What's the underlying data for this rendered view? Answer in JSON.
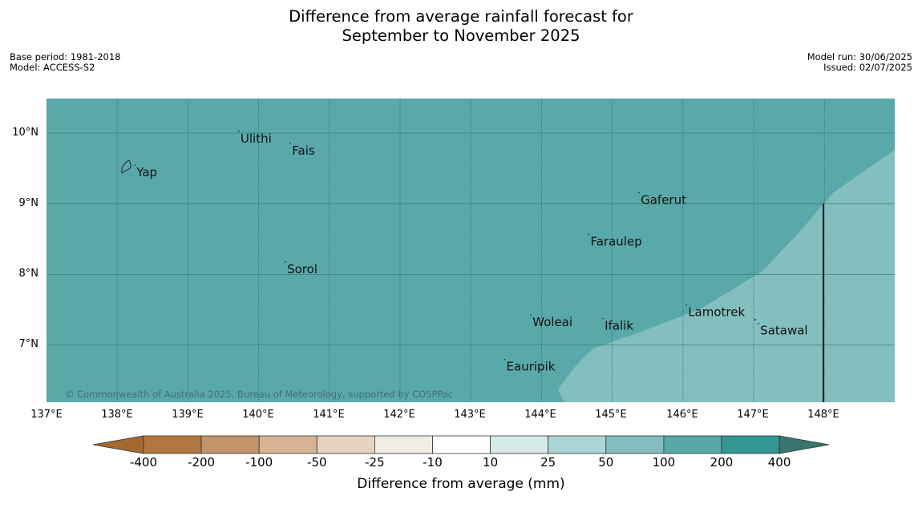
{
  "title_line1": "Difference from average rainfall forecast for",
  "title_line2": "September to November 2025",
  "base_period": "Base period: 1981-2018",
  "model": "Model: ACCESS-S2",
  "model_run": "Model run: 30/06/2025",
  "issued": "Issued: 02/07/2025",
  "copyright": "© Commonwealth of Australia 2025, Bureau of Meteorology, supported by COSPPac",
  "lon_labels": [
    "137°E",
    "138°E",
    "139°E",
    "140°E",
    "141°E",
    "142°E",
    "143°E",
    "144°E",
    "145°E",
    "146°E",
    "147°E",
    "148°E"
  ],
  "lat_labels": [
    "10°N",
    "9°N",
    "8°N",
    "7°N"
  ],
  "places": [
    {
      "name": "Yap",
      "lon": 138.25,
      "lat": 9.5
    },
    {
      "name": "Ulithi",
      "lon": 139.72,
      "lat": 9.98
    },
    {
      "name": "Fais",
      "lon": 140.45,
      "lat": 9.81
    },
    {
      "name": "Gaferut",
      "lon": 145.38,
      "lat": 9.11
    },
    {
      "name": "Faraulep",
      "lon": 144.67,
      "lat": 8.52
    },
    {
      "name": "Sorol",
      "lon": 140.38,
      "lat": 8.13
    },
    {
      "name": "Lamotrek",
      "lon": 146.05,
      "lat": 7.52
    },
    {
      "name": "Woleai",
      "lon": 143.85,
      "lat": 7.38
    },
    {
      "name": "Ifalik",
      "lon": 144.87,
      "lat": 7.33
    },
    {
      "name": "Satawal",
      "lon": 147.07,
      "lat": 7.26
    },
    {
      "name": "Eauripik",
      "lon": 143.48,
      "lat": 6.75
    }
  ],
  "map_extent": {
    "lon": [
      137.0,
      149.0
    ],
    "lat": [
      6.2,
      10.5
    ]
  },
  "regions": [
    {
      "category": "100 to 200 mm",
      "color": "#5aa9aa",
      "note": "most of domain"
    },
    {
      "category": "50 to 100 mm",
      "color": "#83bfbe",
      "note": "south-east corner"
    }
  ],
  "colorbar": {
    "label": "Difference from average (mm)",
    "ticks": [
      "-400",
      "-200",
      "-100",
      "-50",
      "-25",
      "-10",
      "10",
      "25",
      "50",
      "100",
      "200",
      "400"
    ],
    "colors": [
      "#a5692f",
      "#b27640",
      "#c3946a",
      "#d6b392",
      "#e5d3c2",
      "#f0ece6",
      "#ffffff",
      "#d5e9e8",
      "#abd5d4",
      "#82bebd",
      "#58a8a8",
      "#339794",
      "#38766f"
    ]
  }
}
